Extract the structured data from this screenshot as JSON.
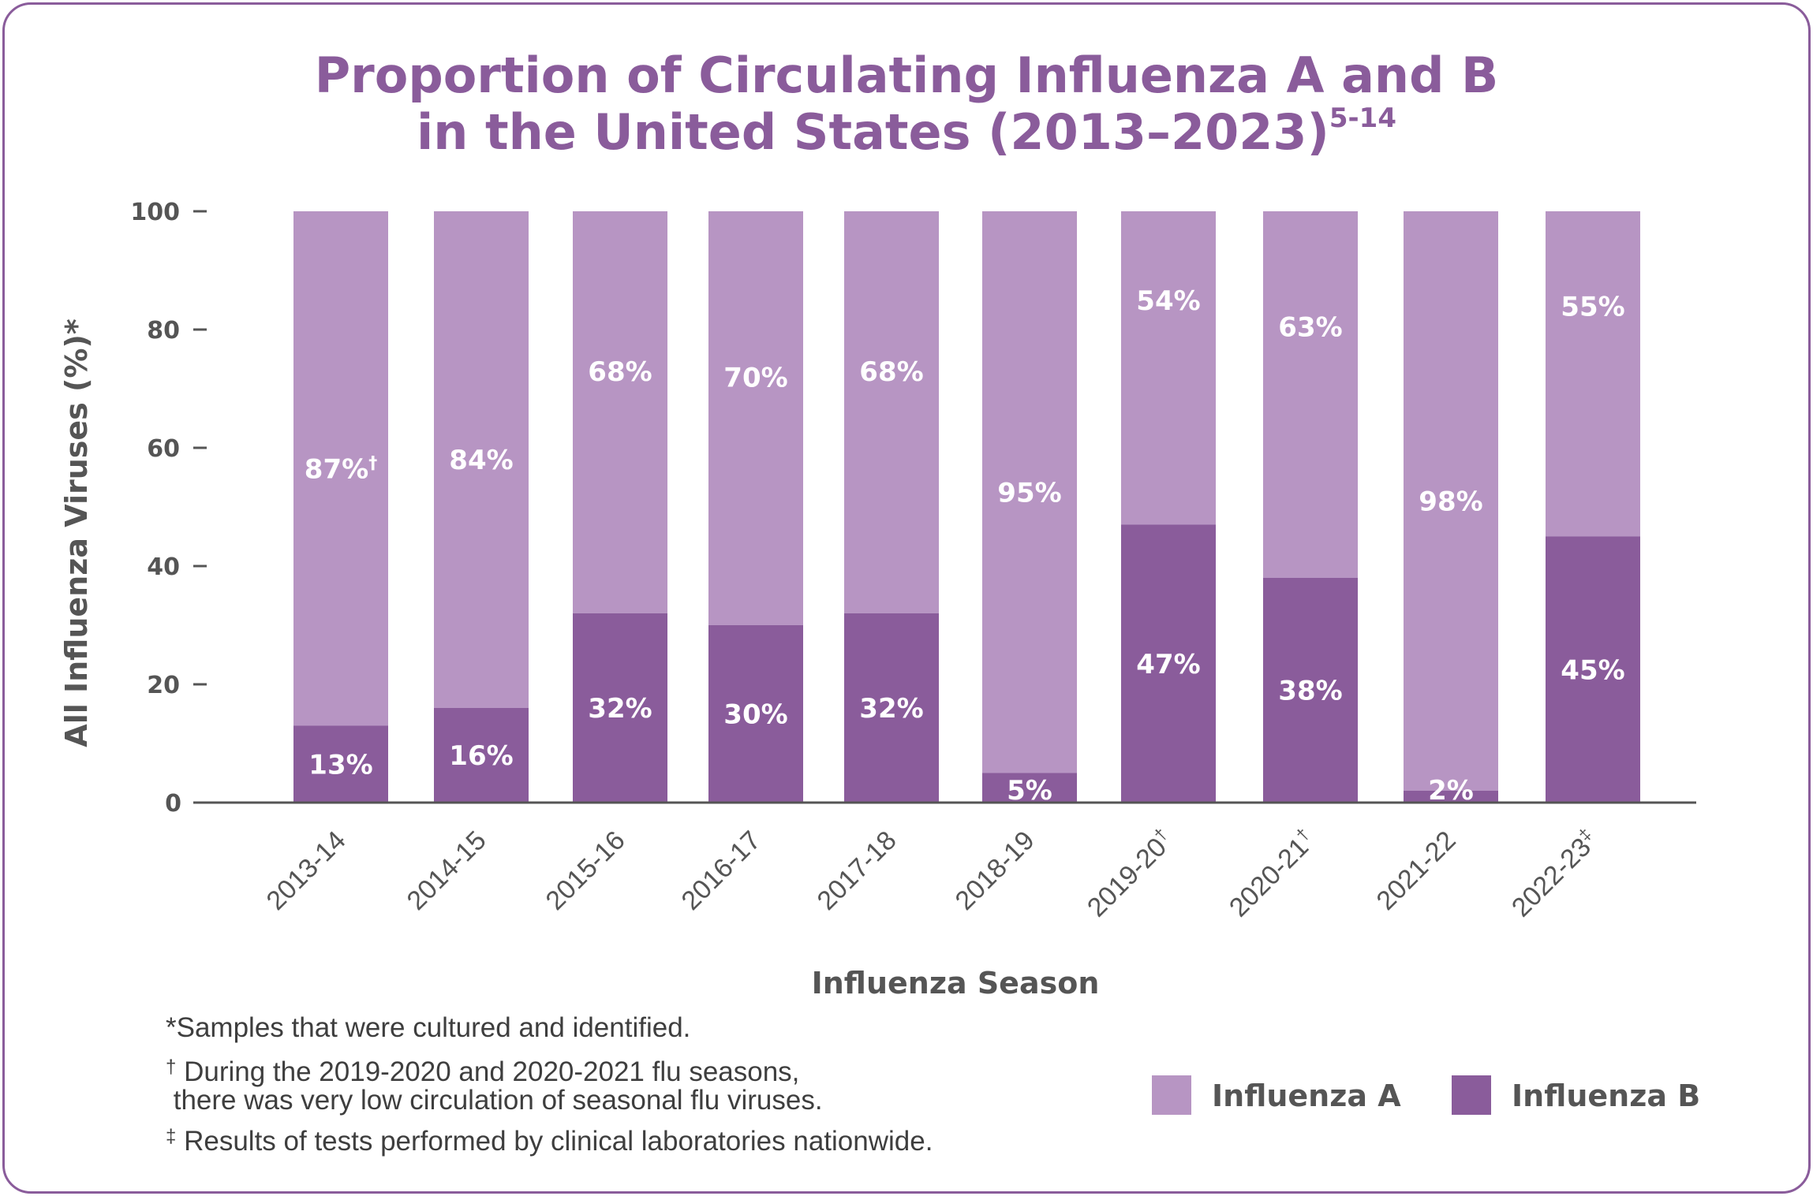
{
  "chart_data": {
    "type": "bar",
    "stacked": true,
    "title": "Proportion of Circulating Influenza A and B",
    "title_line2": "in the United States (2013–2023)",
    "title_superscript": "5-14",
    "xlabel": "Influenza Season",
    "ylabel": "All Influenza Viruses (%)*",
    "ylim": [
      0,
      100
    ],
    "yticks": [
      0,
      20,
      40,
      60,
      80,
      100
    ],
    "categories": [
      "2013-14",
      "2014-15",
      "2015-16",
      "2016-17",
      "2017-18",
      "2018-19",
      "2019-20",
      "2020-21",
      "2021-22",
      "2022-23"
    ],
    "category_marks": [
      "",
      "",
      "",
      "",
      "",
      "",
      "†",
      "†",
      "",
      "‡"
    ],
    "series": [
      {
        "name": "Influenza B",
        "color": "#8a5c9b",
        "values": [
          13,
          16,
          32,
          30,
          32,
          5,
          47,
          38,
          2,
          45
        ],
        "labels": [
          "13%",
          "16%",
          "32%",
          "30%",
          "32%",
          "5%",
          "47%",
          "38%",
          "2%",
          "45%"
        ]
      },
      {
        "name": "Influenza A",
        "color": "#b795c3",
        "values": [
          87,
          84,
          68,
          70,
          68,
          95,
          54,
          63,
          98,
          55
        ],
        "labels": [
          "87%†",
          "84%",
          "68%",
          "70%",
          "68%",
          "95%",
          "54%",
          "63%",
          "98%",
          "55%"
        ]
      }
    ],
    "legend_position": "bottom-right",
    "grid": false
  },
  "footnotes": [
    {
      "mark": "*",
      "text": "Samples that were cultured and identified."
    },
    {
      "mark": "†",
      "text": "During the 2019-2020 and 2020-2021 flu seasons,\n there was very low circulation of seasonal flu viruses."
    },
    {
      "mark": "‡",
      "text": "Results of tests performed by clinical laboratories nationwide."
    }
  ],
  "legend": [
    {
      "label": "Influenza A",
      "color": "#b795c3"
    },
    {
      "label": "Influenza B",
      "color": "#8a5c9b"
    }
  ]
}
